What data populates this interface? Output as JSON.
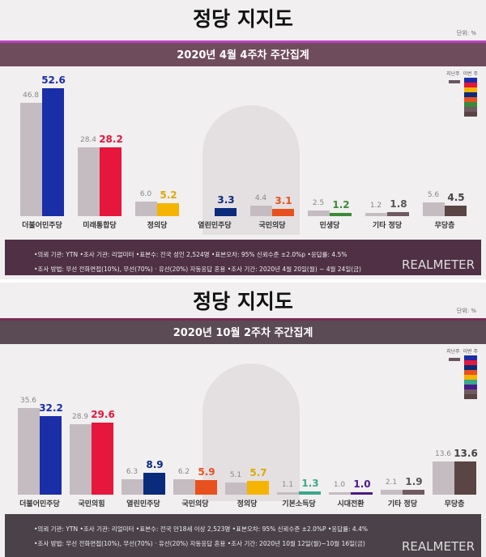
{
  "panels": [
    {
      "title": "정당 지지도",
      "unit": "단위: %",
      "header": "2020년 4월 4주차 주간집계",
      "legend": {
        "prev": "지난주",
        "curr": "이번 주"
      },
      "footer_line1": "•의뢰 기관: YTN •조사 기관: 리얼미터 •표본수: 전국 성인 2,524명 •표본오차: 95% 신뢰수준 ±2.0%p •응답률: 4.5%",
      "footer_line2": "•조사 방법: 무선 전화면접(10%), 무선(70%) · 유선(20%) 자동응답 혼용 •조사 기간: 2020년 4월 20일(월) ~ 4월 24일(금)",
      "brand": "REALMETER"
    },
    {
      "title": "정당 지지도",
      "unit": "단위: %",
      "header": "2020년 10월 2주차 주간집계",
      "legend": {
        "prev": "지난주",
        "curr": "이번 주"
      },
      "footer_line1": "•의뢰 기관: YTN •조사 기관: 리얼미터 •표본수: 전국 만18세 이상 2,523명 •표본오차: 95% 신뢰수준 ±2.0%P •응답률: 4.4%",
      "footer_line2": "•조사 방법: 무선 전화면접(10%), 무선(70%) · 유선(20%) 자동응답 혼용 •조사 기간: 2020년 10월 12일(월)~10월 16일(금)",
      "brand": "REALMETER"
    }
  ],
  "chart_data": [
    {
      "type": "bar",
      "title": "2020년 4월 4주차 주간집계",
      "categories": [
        "더불어민주당",
        "미래통합당",
        "정의당",
        "열린민주당",
        "국민의당",
        "민생당",
        "기타 정당",
        "무당층"
      ],
      "series": [
        {
          "name": "지난주",
          "values": [
            46.8,
            28.4,
            6.0,
            null,
            4.4,
            2.5,
            1.2,
            5.6
          ]
        },
        {
          "name": "이번 주",
          "values": [
            52.6,
            28.2,
            5.2,
            3.3,
            3.1,
            1.2,
            1.8,
            4.5
          ]
        }
      ],
      "colors": [
        "#1a2ea8",
        "#e6163c",
        "#f5b400",
        "#0a2a7c",
        "#e8501e",
        "#3a8a3a",
        "#6e5a60",
        "#5a4444"
      ],
      "value_colors": [
        "#1a2ea8",
        "#e6163c",
        "#e0a800",
        "#0a2a7c",
        "#e8501e",
        "#3a8a3a",
        "#555555",
        "#444444"
      ],
      "prev_color": "#c4bcc0",
      "ylim": [
        0,
        60
      ]
    },
    {
      "type": "bar",
      "title": "2020년 10월 2주차 주간집계",
      "categories": [
        "더불어민주당",
        "국민의힘",
        "열린민주당",
        "국민의당",
        "정의당",
        "기본소득당",
        "시대전환",
        "기타 정당",
        "무당층"
      ],
      "series": [
        {
          "name": "지난주",
          "values": [
            35.6,
            28.9,
            6.3,
            6.2,
            5.1,
            1.1,
            1.0,
            2.1,
            13.6
          ]
        },
        {
          "name": "이번 주",
          "values": [
            32.2,
            29.6,
            8.9,
            5.9,
            5.7,
            1.3,
            1.0,
            1.9,
            13.6
          ]
        }
      ],
      "colors": [
        "#1a2ea8",
        "#e6163c",
        "#0a2a7c",
        "#e8501e",
        "#f5b400",
        "#3aa88a",
        "#4a1a8a",
        "#6e5a60",
        "#5a4444"
      ],
      "value_colors": [
        "#1a2ea8",
        "#e6163c",
        "#0a2a7c",
        "#e8501e",
        "#e0a800",
        "#3aa88a",
        "#4a1a8a",
        "#555555",
        "#444444"
      ],
      "prev_color": "#c4bcc0",
      "ylim": [
        0,
        40
      ]
    }
  ]
}
